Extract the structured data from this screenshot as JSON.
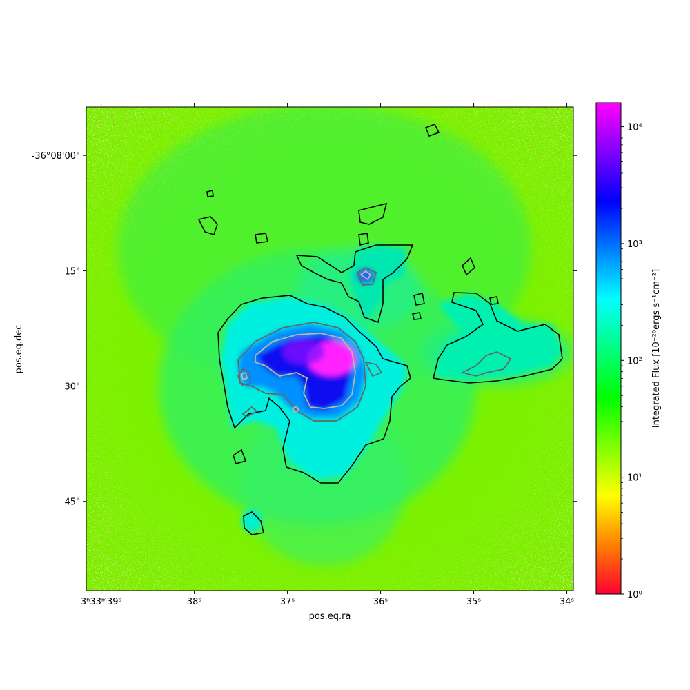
{
  "chart_data": {
    "type": "heatmap",
    "xlabel": "pos.eq.ra",
    "ylabel": "pos.eq.dec",
    "x_ticks": [
      {
        "label": "3ʰ33ᵐ39ˢ",
        "value": 39
      },
      {
        "label": "38ˢ",
        "value": 38
      },
      {
        "label": "37ˢ",
        "value": 37
      },
      {
        "label": "36ˢ",
        "value": 36
      },
      {
        "label": "35ˢ",
        "value": 35
      },
      {
        "label": "34ˢ",
        "value": 34
      }
    ],
    "x_range": [
      39.16,
      33.93
    ],
    "y_ticks": [
      {
        "label": "-36°08'00\"",
        "value": 0
      },
      {
        "label": "15\"",
        "value": 15
      },
      {
        "label": "30\"",
        "value": 30
      },
      {
        "label": "45\"",
        "value": 45
      }
    ],
    "y_range": [
      -6.3,
      56.6
    ],
    "colorbar": {
      "label": "Integrated Flux [10⁻²⁰ergs s⁻¹cm⁻²]",
      "scale": "log",
      "range": [
        1,
        16000
      ],
      "ticks": [
        {
          "label": "10⁰",
          "value": 1
        },
        {
          "label": "10¹",
          "value": 10
        },
        {
          "label": "10²",
          "value": 100
        },
        {
          "label": "10³",
          "value": 1000
        },
        {
          "label": "10⁴",
          "value": 10000
        }
      ],
      "colormap": [
        "#ff0030",
        "#ff8000",
        "#ffff00",
        "#80ff00",
        "#00ff00",
        "#00ff80",
        "#00ffff",
        "#0080ff",
        "#0000ff",
        "#8000ff",
        "#ff00ff"
      ]
    },
    "contour_colors": {
      "outer": "#000000",
      "middle": "#666666",
      "inner": "#c8b4a0"
    },
    "grid": false
  }
}
